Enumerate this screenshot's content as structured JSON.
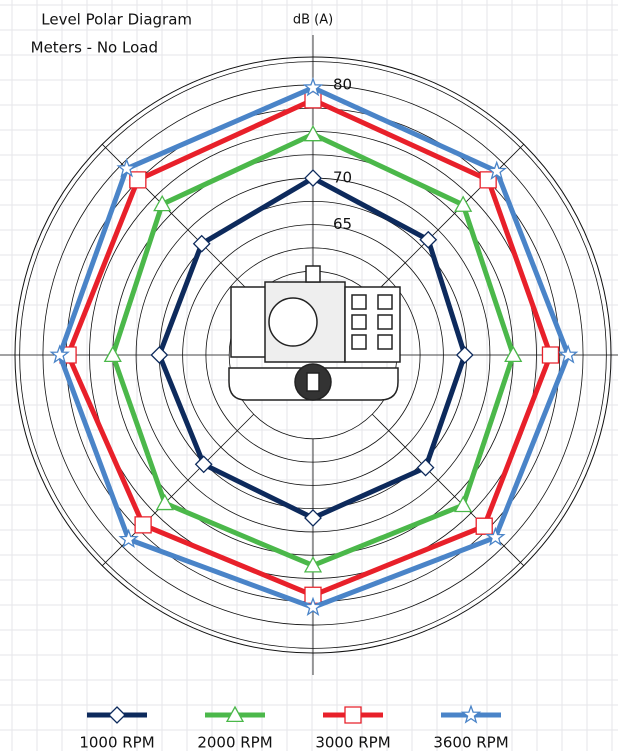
{
  "chart_data": {
    "type": "polar",
    "title": "Level Polar Diagram",
    "subtitle": "Meters - No Load",
    "axis_label": "dB (A)",
    "categories": [
      null,
      null,
      null,
      null,
      null,
      null,
      null,
      null
    ],
    "rlim": [
      51,
      83
    ],
    "yticks": [
      65,
      70,
      80
    ],
    "rings": [
      60,
      62.5,
      67.5,
      72.5,
      75,
      77.5,
      82.5
    ],
    "series": [
      {
        "name": "1000 RPM",
        "color": "#0d2a5c",
        "marker": "diamond",
        "values": [
          70,
          68.5,
          67.3,
          68.1,
          68.5,
          67.6,
          67.5,
          67.9
        ]
      },
      {
        "name": "2000 RPM",
        "color": "#4bb84a",
        "marker": "triangle",
        "values": [
          74.7,
          73.8,
          72.5,
          73.8,
          73.6,
          73.5,
          72.5,
          73.9
        ]
      },
      {
        "name": "3000 RPM",
        "color": "#e8202a",
        "marker": "square",
        "values": [
          78.4,
          77.6,
          76.5,
          77,
          76.8,
          76.8,
          77.3,
          77.6
        ]
      },
      {
        "name": "3600 RPM",
        "color": "#4a84c8",
        "marker": "star",
        "values": [
          79.7,
          78.9,
          78.4,
          78.7,
          78.1,
          79,
          78.2,
          79.3
        ]
      }
    ]
  }
}
